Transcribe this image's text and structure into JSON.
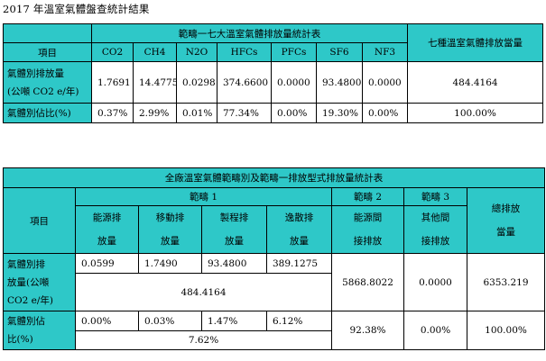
{
  "title": "2017 年溫室氣體盤查統計結果",
  "colors": {
    "header_bg": "#2ec8c8",
    "border": "#000000"
  },
  "table1": {
    "scope_header": "範疇一七大溫室氣體排放量統計表",
    "total_header": "七種溫室氣體排放當量",
    "item_header": "項目",
    "gases": [
      "CO2",
      "CH4",
      "N2O",
      "HFCs",
      "PFCs",
      "SF6",
      "NF3"
    ],
    "row_emission": {
      "label_line1": "氣體別排放量",
      "label_line2": "(公噸 CO2 e/年)",
      "values": [
        "1.7691",
        "14.4775",
        "0.0298",
        "374.6600",
        "0.0000",
        "93.4800",
        "0.0000"
      ],
      "total": "484.4164"
    },
    "row_share": {
      "label": "氣體別佔比(%)",
      "values": [
        "0.37%",
        "2.99%",
        "0.01%",
        "77.34%",
        "0.00%",
        "19.30%",
        "0.00%"
      ],
      "total": "100.00%"
    }
  },
  "table2": {
    "title": "全廠溫室氣體範疇別及範疇一排放型式排放量統計表",
    "item_header": "項目",
    "scope1_header": "範疇 1",
    "scope2_header": "範疇 2",
    "scope3_header": "範疇 3",
    "total_header_line1": "總排放",
    "total_header_line2": "當量",
    "scope1_sub": [
      {
        "line1": "能源排",
        "line2": "放量"
      },
      {
        "line1": "移動排",
        "line2": "放量"
      },
      {
        "line1": "製程排",
        "line2": "放量"
      },
      {
        "line1": "逸散排",
        "line2": "放量"
      }
    ],
    "scope2_sub": {
      "line1": "能源間",
      "line2": "接排放"
    },
    "scope3_sub": {
      "line1": "其他間",
      "line2": "接排放"
    },
    "row_emission": {
      "label_line1": "氣體別排",
      "label_line2": "放量(公噸",
      "label_line3": "CO2 e/年)",
      "scope1_values": [
        "0.0599",
        "1.7490",
        "93.4800",
        "389.1275"
      ],
      "scope1_total": "484.4164",
      "scope2": "5868.8022",
      "scope3": "0.0000",
      "total": "6353.219"
    },
    "row_share": {
      "label_line1": "氣體別佔",
      "label_line2": "比(%)",
      "scope1_values": [
        "0.00%",
        "0.03%",
        "1.47%",
        "6.12%"
      ],
      "scope1_total": "7.62%",
      "scope2": "92.38%",
      "scope3": "0.00%",
      "total": "100.00%"
    }
  }
}
